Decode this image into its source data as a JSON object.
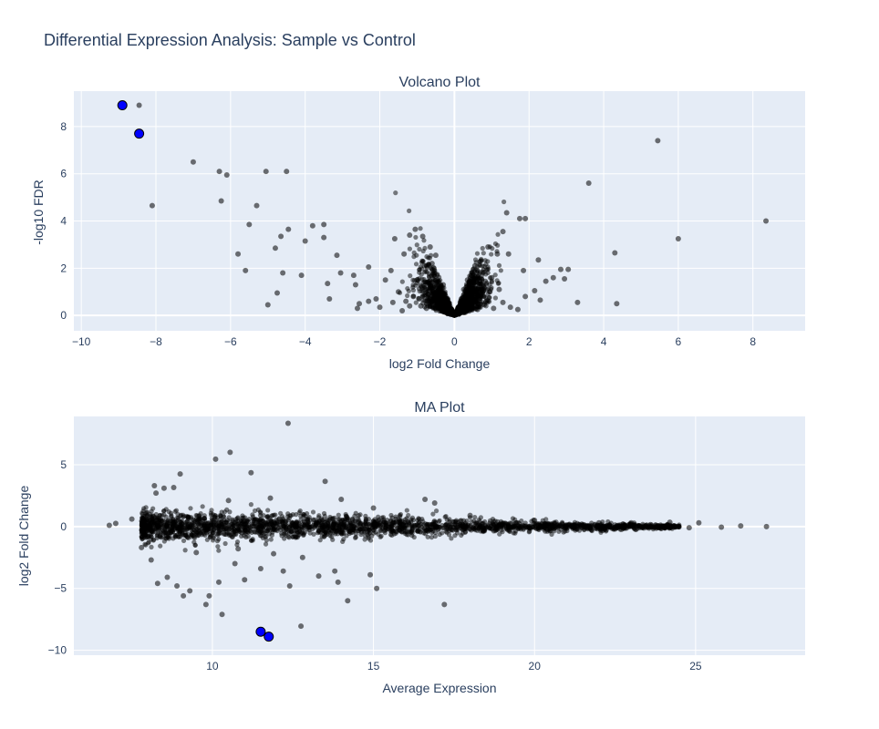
{
  "figure": {
    "title": "Differential Expression Analysis: Sample vs Control"
  },
  "colors": {
    "plot_bg": "#e5ecf6",
    "grid": "#ffffff",
    "text": "#2a3f5f",
    "point": "#000000",
    "highlight": "#0000ff"
  },
  "chart_data": [
    {
      "type": "scatter",
      "title": "Volcano Plot",
      "xlabel": "log2 Fold Change",
      "ylabel": "-log10 FDR",
      "xlim": [
        -10.2,
        9.4
      ],
      "ylim": [
        -0.65,
        9.5
      ],
      "xticks": [
        -10,
        -8,
        -6,
        -4,
        -2,
        0,
        2,
        4,
        6,
        8
      ],
      "yticks": [
        0,
        2,
        4,
        6,
        8
      ],
      "grid": true,
      "series": [
        {
          "points": [
            [
              -8.45,
              8.9
            ],
            [
              -7.0,
              6.5
            ],
            [
              -6.3,
              6.1
            ],
            [
              -6.1,
              5.95
            ],
            [
              -6.25,
              4.85
            ],
            [
              -8.1,
              4.65
            ],
            [
              -5.05,
              6.1
            ],
            [
              -4.5,
              6.1
            ],
            [
              -5.3,
              4.65
            ],
            [
              -5.5,
              3.85
            ],
            [
              -5.8,
              2.6
            ],
            [
              -5.6,
              1.9
            ],
            [
              -4.8,
              2.85
            ],
            [
              -4.65,
              3.35
            ],
            [
              -4.45,
              3.65
            ],
            [
              -4.0,
              3.15
            ],
            [
              -3.8,
              3.8
            ],
            [
              -3.5,
              3.85
            ],
            [
              -3.5,
              3.3
            ],
            [
              -4.6,
              1.8
            ],
            [
              -4.1,
              1.7
            ],
            [
              -4.75,
              0.95
            ],
            [
              -5.0,
              0.45
            ],
            [
              -3.4,
              1.35
            ],
            [
              -3.35,
              0.7
            ],
            [
              -3.15,
              2.55
            ],
            [
              -3.05,
              1.8
            ],
            [
              -2.7,
              1.7
            ],
            [
              -2.65,
              1.3
            ],
            [
              -2.3,
              2.05
            ],
            [
              -2.55,
              0.5
            ],
            [
              -2.6,
              0.3
            ],
            [
              -2.1,
              0.7
            ],
            [
              -1.6,
              3.25
            ],
            [
              -1.2,
              3.4
            ],
            [
              -1.05,
              3.65
            ],
            [
              -0.85,
              3.35
            ],
            [
              -0.65,
              2.9
            ],
            [
              -0.5,
              2.55
            ],
            [
              -1.35,
              2.6
            ],
            [
              -1.7,
              1.9
            ],
            [
              -1.85,
              1.5
            ],
            [
              -1.5,
              1.0
            ],
            [
              -2.0,
              0.35
            ],
            [
              3.6,
              5.6
            ],
            [
              5.45,
              7.4
            ],
            [
              8.35,
              4.0
            ],
            [
              6.0,
              3.25
            ],
            [
              4.3,
              2.65
            ],
            [
              1.4,
              4.35
            ],
            [
              1.75,
              4.1
            ],
            [
              1.9,
              4.1
            ],
            [
              1.3,
              3.55
            ],
            [
              1.15,
              2.6
            ],
            [
              1.45,
              2.6
            ],
            [
              1.85,
              1.9
            ],
            [
              2.25,
              2.35
            ],
            [
              2.45,
              1.45
            ],
            [
              2.65,
              1.6
            ],
            [
              2.85,
              1.95
            ],
            [
              3.05,
              1.95
            ],
            [
              2.95,
              1.55
            ],
            [
              2.15,
              1.05
            ],
            [
              2.3,
              0.65
            ],
            [
              3.3,
              0.55
            ],
            [
              4.35,
              0.5
            ],
            [
              1.9,
              0.8
            ],
            [
              1.7,
              0.25
            ],
            [
              1.2,
              1.1
            ],
            [
              0.9,
              2.9
            ],
            [
              1.0,
              1.6
            ],
            [
              0.85,
              0.6
            ],
            [
              -1.0,
              1.5
            ],
            [
              -0.8,
              2.1
            ],
            [
              -0.95,
              0.7
            ],
            [
              -1.2,
              0.4
            ],
            [
              -0.7,
              0.9
            ],
            [
              -0.6,
              1.4
            ],
            [
              -0.75,
              0.3
            ],
            [
              -0.5,
              0.9
            ],
            [
              -0.45,
              0.45
            ],
            [
              -0.35,
              0.6
            ],
            [
              -0.3,
              0.2
            ],
            [
              -0.25,
              0.35
            ],
            [
              -0.2,
              0.12
            ],
            [
              -0.15,
              0.25
            ],
            [
              -0.12,
              0.06
            ],
            [
              -0.1,
              0.18
            ],
            [
              -0.06,
              0.05
            ],
            [
              0.05,
              0.04
            ],
            [
              0.1,
              0.15
            ],
            [
              0.15,
              0.3
            ],
            [
              0.2,
              0.4
            ],
            [
              0.25,
              0.6
            ],
            [
              0.3,
              0.85
            ],
            [
              0.35,
              1.0
            ],
            [
              0.4,
              1.2
            ],
            [
              0.45,
              0.7
            ],
            [
              0.5,
              1.4
            ],
            [
              0.55,
              0.5
            ],
            [
              0.6,
              1.8
            ],
            [
              0.65,
              0.9
            ],
            [
              0.7,
              2.3
            ],
            [
              0.75,
              1.3
            ],
            [
              0.8,
              0.45
            ],
            [
              0.45,
              1.7
            ],
            [
              0.55,
              2.1
            ],
            [
              0.35,
              1.5
            ],
            [
              -0.4,
              1.1
            ],
            [
              -0.55,
              1.7
            ],
            [
              -0.6,
              2.2
            ],
            [
              -0.65,
              0.6
            ],
            [
              -0.85,
              1.2
            ],
            [
              -0.9,
              0.4
            ],
            [
              -1.1,
              0.8
            ],
            [
              -1.3,
              0.6
            ],
            [
              -1.4,
              0.2
            ],
            [
              -1.65,
              0.55
            ],
            [
              -0.28,
              0.75
            ],
            [
              0.28,
              0.2
            ],
            [
              0.18,
              0.55
            ],
            [
              -0.18,
              0.45
            ],
            [
              -0.38,
              0.3
            ],
            [
              0.38,
              0.35
            ],
            [
              0.62,
              0.25
            ],
            [
              1.05,
              0.3
            ],
            [
              1.3,
              0.55
            ],
            [
              1.5,
              0.35
            ],
            [
              -2.3,
              0.6
            ],
            [
              0.95,
              1.0
            ],
            [
              -0.3,
              1.3
            ],
            [
              0.25,
              1.1
            ]
          ]
        },
        {
          "highlight": true,
          "points": [
            [
              -8.9,
              8.9
            ],
            [
              -8.45,
              7.7
            ]
          ]
        }
      ]
    },
    {
      "type": "scatter",
      "title": "MA Plot",
      "xlabel": "Average Expression",
      "ylabel": "log2 Fold Change",
      "xlim": [
        5.7,
        28.4
      ],
      "ylim": [
        -10.4,
        8.9
      ],
      "xticks": [
        10,
        15,
        20,
        25
      ],
      "yticks": [
        -10,
        -5,
        0,
        5
      ],
      "grid": true,
      "series": [
        {
          "points": [
            [
              12.35,
              8.35
            ],
            [
              10.55,
              6.0
            ],
            [
              10.1,
              5.45
            ],
            [
              11.2,
              4.35
            ],
            [
              9.0,
              4.25
            ],
            [
              13.5,
              3.65
            ],
            [
              8.2,
              3.3
            ],
            [
              8.5,
              3.1
            ],
            [
              8.8,
              3.15
            ],
            [
              8.25,
              2.7
            ],
            [
              10.5,
              2.1
            ],
            [
              11.8,
              2.3
            ],
            [
              14.0,
              2.2
            ],
            [
              16.6,
              2.2
            ],
            [
              16.9,
              1.9
            ],
            [
              15.0,
              1.5
            ],
            [
              7.0,
              0.25
            ],
            [
              6.8,
              0.1
            ],
            [
              7.5,
              0.6
            ],
            [
              8.0,
              -0.3
            ],
            [
              7.8,
              -1.7
            ],
            [
              8.1,
              -2.7
            ],
            [
              8.3,
              -4.6
            ],
            [
              8.6,
              -4.1
            ],
            [
              8.9,
              -4.8
            ],
            [
              9.3,
              -5.2
            ],
            [
              9.1,
              -5.6
            ],
            [
              9.9,
              -5.6
            ],
            [
              10.2,
              -4.5
            ],
            [
              9.8,
              -6.3
            ],
            [
              10.3,
              -7.1
            ],
            [
              11.0,
              -4.3
            ],
            [
              11.5,
              -3.4
            ],
            [
              10.7,
              -3.0
            ],
            [
              12.2,
              -3.6
            ],
            [
              12.4,
              -4.8
            ],
            [
              12.75,
              -8.05
            ],
            [
              13.3,
              -4.0
            ],
            [
              13.8,
              -3.6
            ],
            [
              13.9,
              -4.5
            ],
            [
              14.2,
              -6.0
            ],
            [
              14.9,
              -3.9
            ],
            [
              15.1,
              -5.0
            ],
            [
              17.2,
              -6.3
            ],
            [
              12.8,
              -2.5
            ],
            [
              11.9,
              -2.2
            ],
            [
              10.8,
              -1.8
            ],
            [
              9.5,
              -2.1
            ],
            [
              18.0,
              0.9
            ],
            [
              20.0,
              0.5
            ],
            [
              22.0,
              0.3
            ],
            [
              23.0,
              0.3
            ],
            [
              24.2,
              0.35
            ],
            [
              25.1,
              0.3
            ],
            [
              25.8,
              -0.05
            ],
            [
              26.4,
              0.05
            ],
            [
              27.2,
              0.0
            ],
            [
              24.8,
              -0.1
            ],
            [
              23.6,
              0.15
            ],
            [
              22.5,
              -0.2
            ]
          ],
          "band": {
            "x_range": [
              7.8,
              24.5
            ],
            "count": 2400,
            "spread_at_start": 1.2,
            "spread_at_end": 0.12
          }
        },
        {
          "highlight": true,
          "points": [
            [
              11.5,
              -8.5
            ],
            [
              11.75,
              -8.9
            ]
          ]
        }
      ]
    }
  ]
}
